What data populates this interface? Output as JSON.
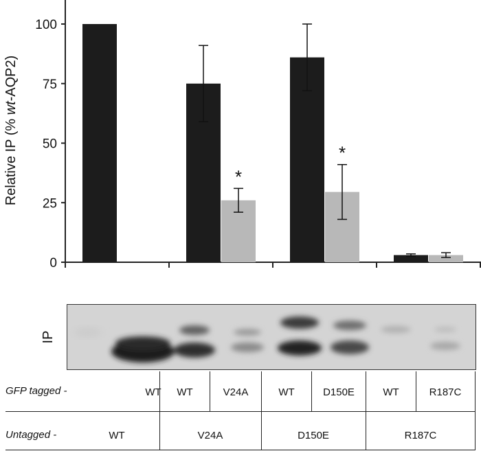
{
  "chart_data": {
    "type": "bar",
    "ylabel_prefix": "Relative IP (% ",
    "ylabel_italic": "wt",
    "ylabel_suffix": "-AQP2)",
    "ylim": [
      0,
      100
    ],
    "yticks": [
      0,
      25,
      50,
      75,
      100
    ],
    "grid": false,
    "series": [
      {
        "color": "#1c1c1c",
        "values": [
          100,
          75,
          86,
          3
        ],
        "errors": [
          0,
          16,
          14,
          0.5
        ]
      },
      {
        "color": "#b8b8b8",
        "values": [
          null,
          26,
          29.5,
          3
        ],
        "errors": [
          0,
          5,
          11.5,
          1
        ]
      }
    ],
    "annotations": [
      {
        "text": "*",
        "group": 1,
        "series": 1
      },
      {
        "text": "*",
        "group": 2,
        "series": 1
      }
    ]
  },
  "blot": {
    "label": "IP"
  },
  "table": {
    "gfp_label": "GFP tagged -",
    "gfp_cells": [
      "WT",
      "WT",
      "V24A",
      "WT",
      "D150E",
      "WT",
      "R187C"
    ],
    "untagged_label": "Untagged -",
    "untagged_cells": [
      "WT",
      "V24A",
      "D150E",
      "R187C"
    ]
  }
}
